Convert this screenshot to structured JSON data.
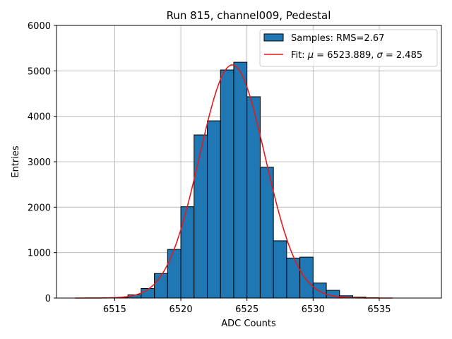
{
  "chart_data": {
    "type": "bar",
    "title": "Run 815, channel009, Pedestal",
    "xlabel": "ADC Counts",
    "ylabel": "Entries",
    "xlim": [
      6510.6,
      6539.7
    ],
    "ylim": [
      0,
      6000
    ],
    "xticks": [
      6515,
      6520,
      6525,
      6530,
      6535
    ],
    "yticks": [
      0,
      1000,
      2000,
      3000,
      4000,
      5000,
      6000
    ],
    "grid": true,
    "legend_position": "top-right",
    "bar_color": "#1f77b4",
    "fit_color": "#e41a1c",
    "bins": [
      {
        "left": 6512,
        "right": 6513,
        "count": 0
      },
      {
        "left": 6513,
        "right": 6514,
        "count": 0
      },
      {
        "left": 6514,
        "right": 6515,
        "count": 0
      },
      {
        "left": 6515,
        "right": 6516,
        "count": 10
      },
      {
        "left": 6516,
        "right": 6517,
        "count": 70
      },
      {
        "left": 6517,
        "right": 6518,
        "count": 210
      },
      {
        "left": 6518,
        "right": 6519,
        "count": 540
      },
      {
        "left": 6519,
        "right": 6520,
        "count": 1070
      },
      {
        "left": 6520,
        "right": 6521,
        "count": 2010
      },
      {
        "left": 6521,
        "right": 6522,
        "count": 3590
      },
      {
        "left": 6522,
        "right": 6523,
        "count": 3900
      },
      {
        "left": 6523,
        "right": 6524,
        "count": 5020
      },
      {
        "left": 6524,
        "right": 6525,
        "count": 5190
      },
      {
        "left": 6525,
        "right": 6526,
        "count": 4430
      },
      {
        "left": 6526,
        "right": 6527,
        "count": 2880
      },
      {
        "left": 6527,
        "right": 6528,
        "count": 1260
      },
      {
        "left": 6528,
        "right": 6529,
        "count": 880
      },
      {
        "left": 6529,
        "right": 6530,
        "count": 900
      },
      {
        "left": 6530,
        "right": 6531,
        "count": 330
      },
      {
        "left": 6531,
        "right": 6532,
        "count": 170
      },
      {
        "left": 6532,
        "right": 6533,
        "count": 50
      },
      {
        "left": 6533,
        "right": 6534,
        "count": 20
      },
      {
        "left": 6534,
        "right": 6535,
        "count": 5
      },
      {
        "left": 6535,
        "right": 6536,
        "count": 0
      }
    ],
    "fit": {
      "mu": 6523.889,
      "sigma": 2.485,
      "amplitude": 5130,
      "x_range": [
        6512,
        6536
      ]
    },
    "legend": {
      "samples_label": "Samples: RMS=2.67",
      "fit_prefix": "Fit: ",
      "fit_mu_symbol": "μ",
      "fit_mu_value": " = 6523.889, ",
      "fit_sigma_symbol": "σ",
      "fit_sigma_value": " = 2.485"
    }
  }
}
